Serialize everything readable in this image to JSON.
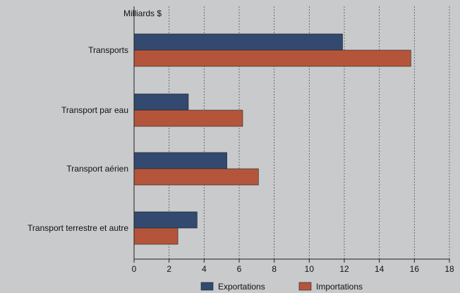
{
  "chart_data": {
    "type": "bar",
    "orientation": "horizontal",
    "unit_label": "Milliards $",
    "categories": [
      "Transports",
      "Transport par eau",
      "Transport aérien",
      "Transport terrestre et autre"
    ],
    "series": [
      {
        "name": "Exportations",
        "color": "#33496f",
        "values": [
          11.9,
          3.1,
          5.3,
          3.6
        ]
      },
      {
        "name": "Importations",
        "color": "#b4553b",
        "values": [
          15.8,
          6.2,
          7.1,
          2.5
        ]
      }
    ],
    "xlim": [
      0,
      18
    ],
    "xticks": [
      "0",
      "2",
      "4",
      "6",
      "8",
      "10",
      "12",
      "14",
      "16",
      "18"
    ],
    "grid": "vertical-dashed",
    "legend_position": "bottom"
  }
}
